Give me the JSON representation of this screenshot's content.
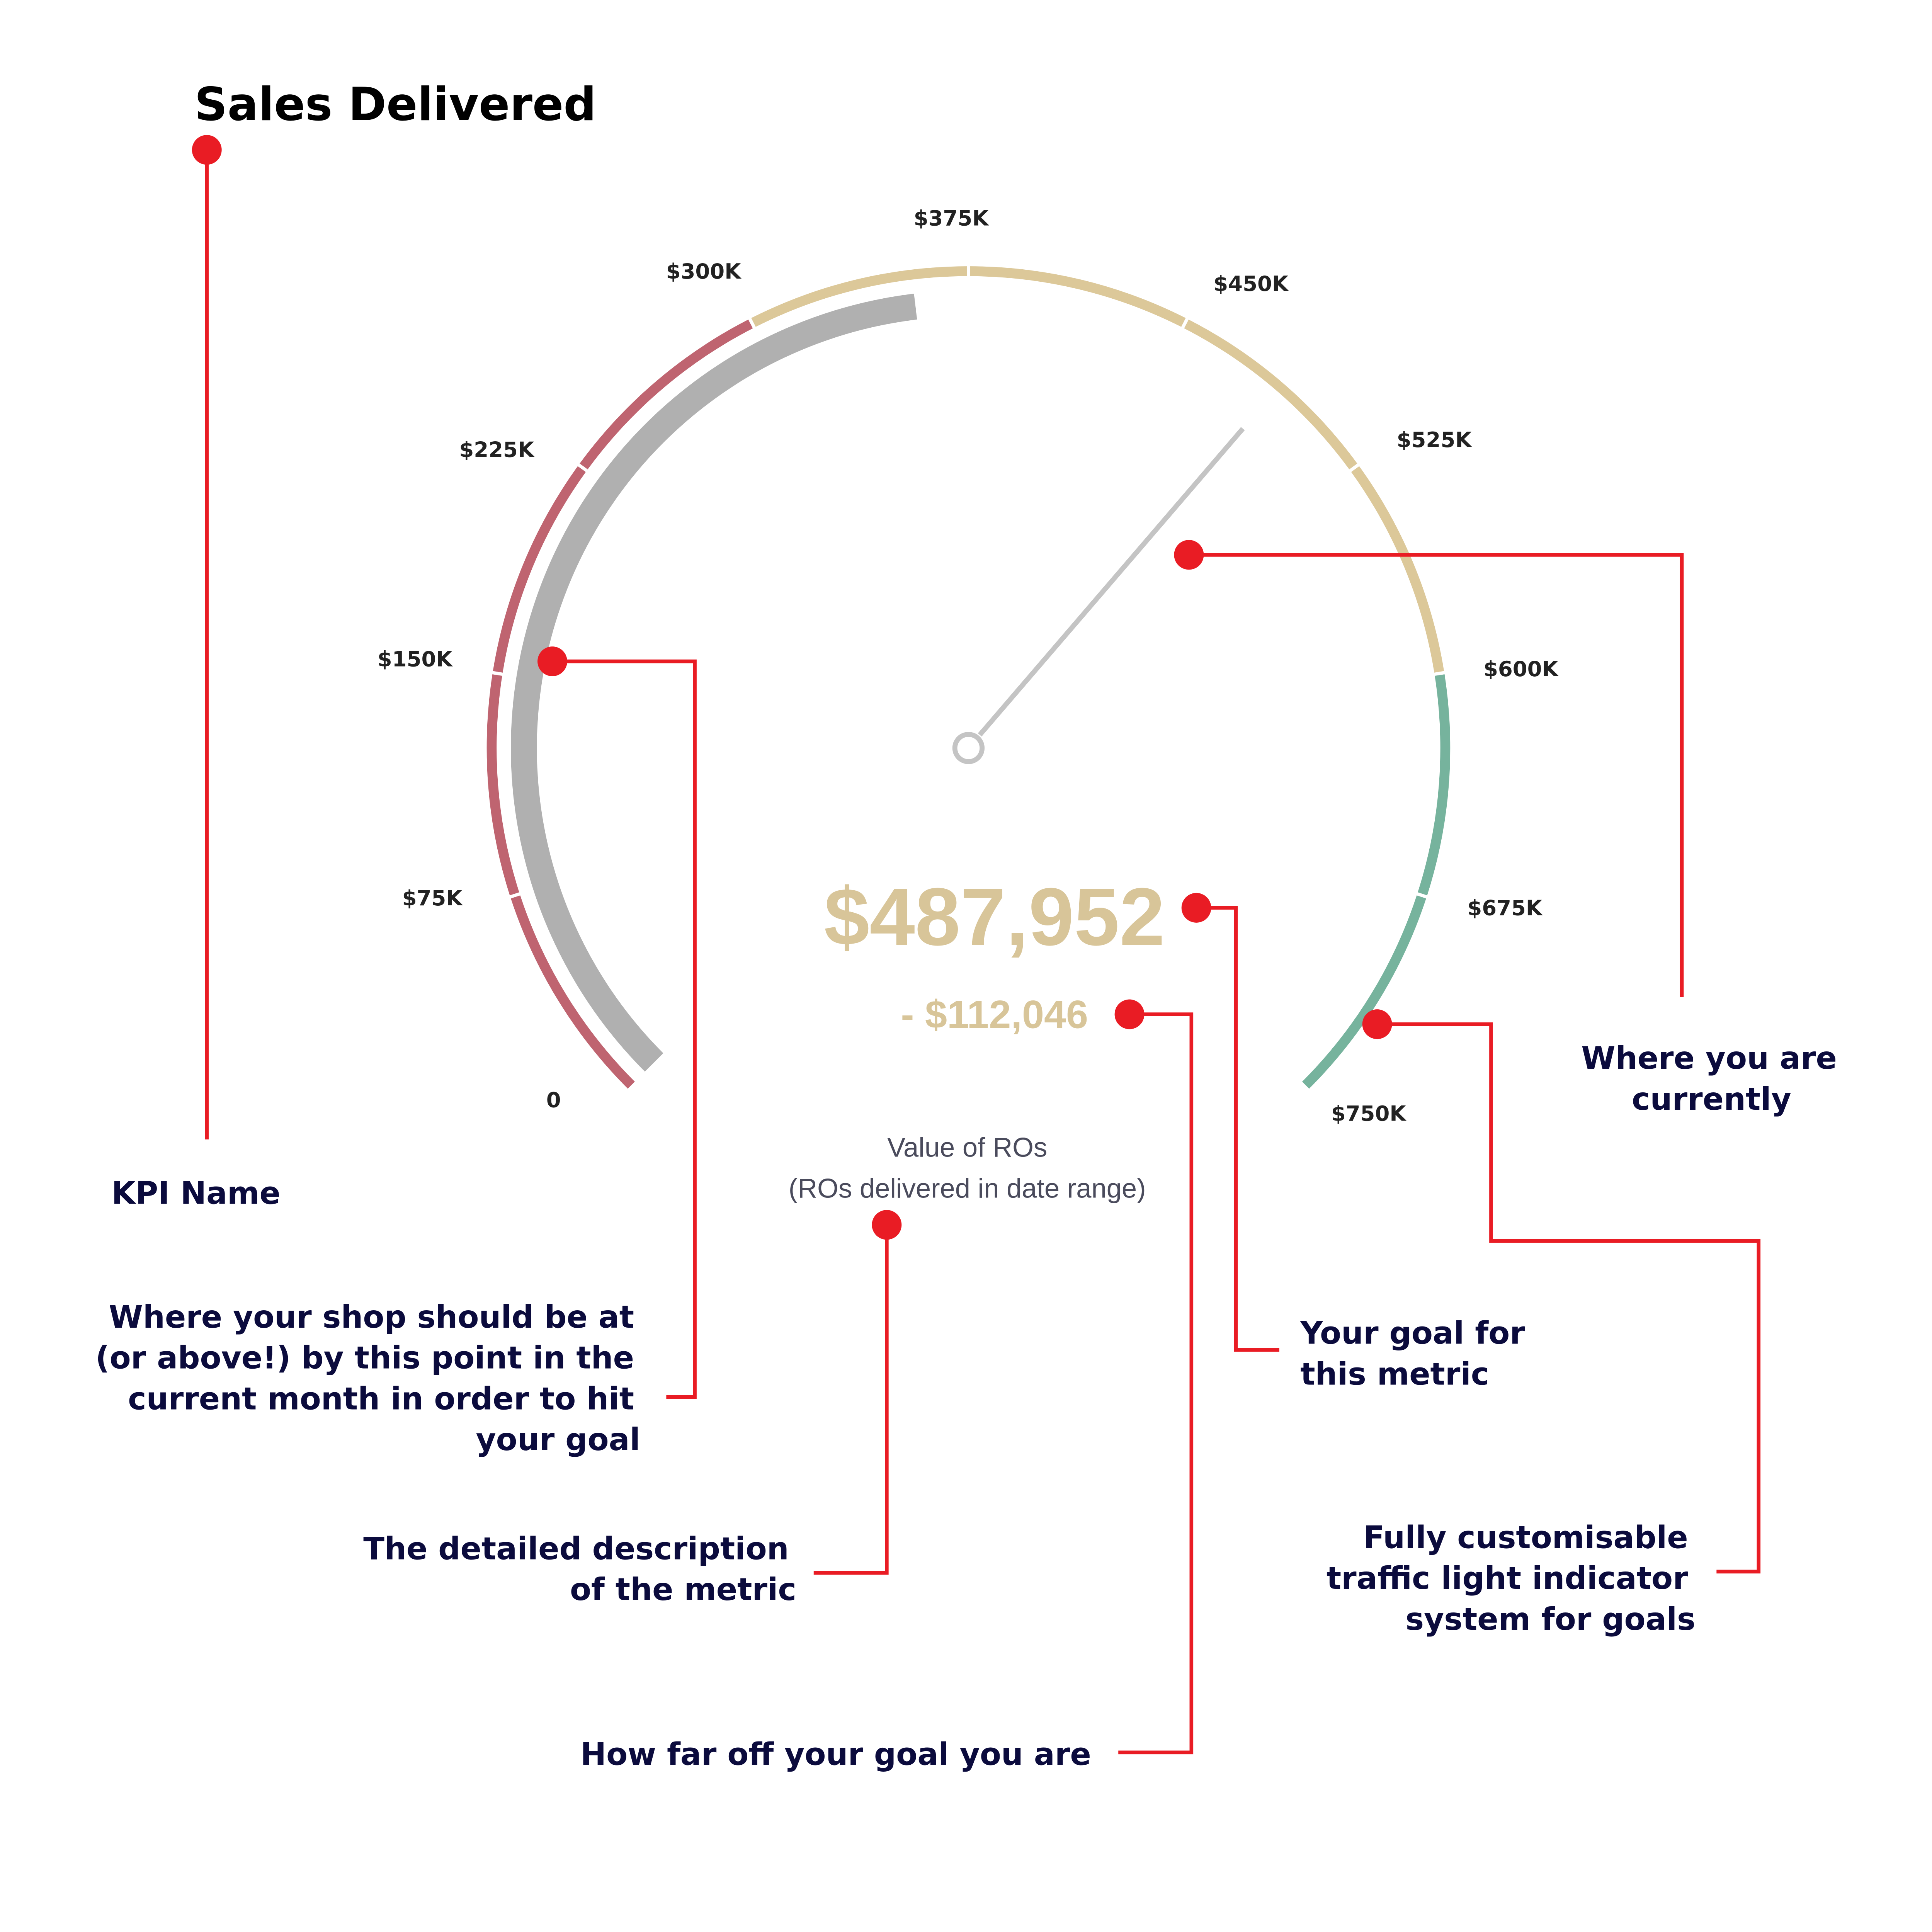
{
  "title": "Sales Delivered",
  "gauge": {
    "min": 0,
    "max": 750000,
    "tick_labels": [
      "0",
      "$75K",
      "$150K",
      "$225K",
      "$300K",
      "$375K",
      "$450K",
      "$525K",
      "$600K",
      "$675K",
      "$750K"
    ],
    "bands": [
      {
        "from": 0,
        "to": 300000,
        "color": "#bf6470"
      },
      {
        "from": 300000,
        "to": 600000,
        "color": "#dcc899"
      },
      {
        "from": 600000,
        "to": 750000,
        "color": "#76b39d"
      }
    ],
    "target_progress_value": 356000,
    "target_progress_color": "#b0b0b0",
    "current_value": 487952,
    "needle_color": "#c4c4c4",
    "value_label": "$487,952",
    "difference_label": "- $112,046",
    "value_color": "#d8c599",
    "description_lines": [
      "Value of ROs",
      "(ROs delivered in date range)"
    ]
  },
  "annotations": {
    "color": "#e91c24",
    "kpi_name": "KPI Name",
    "should_be": [
      "Where your shop should be at",
      "(or above!) by this point in the",
      "current month in order to hit",
      "your goal"
    ],
    "current": [
      "Where you are",
      "currently"
    ],
    "goal": [
      "Your goal for",
      "this metric"
    ],
    "description": [
      "The detailed description",
      "of the metric"
    ],
    "how_far_off": "How far off your goal you are",
    "traffic_light": [
      "Fully customisable",
      "traffic light indicator",
      "system for goals"
    ]
  }
}
